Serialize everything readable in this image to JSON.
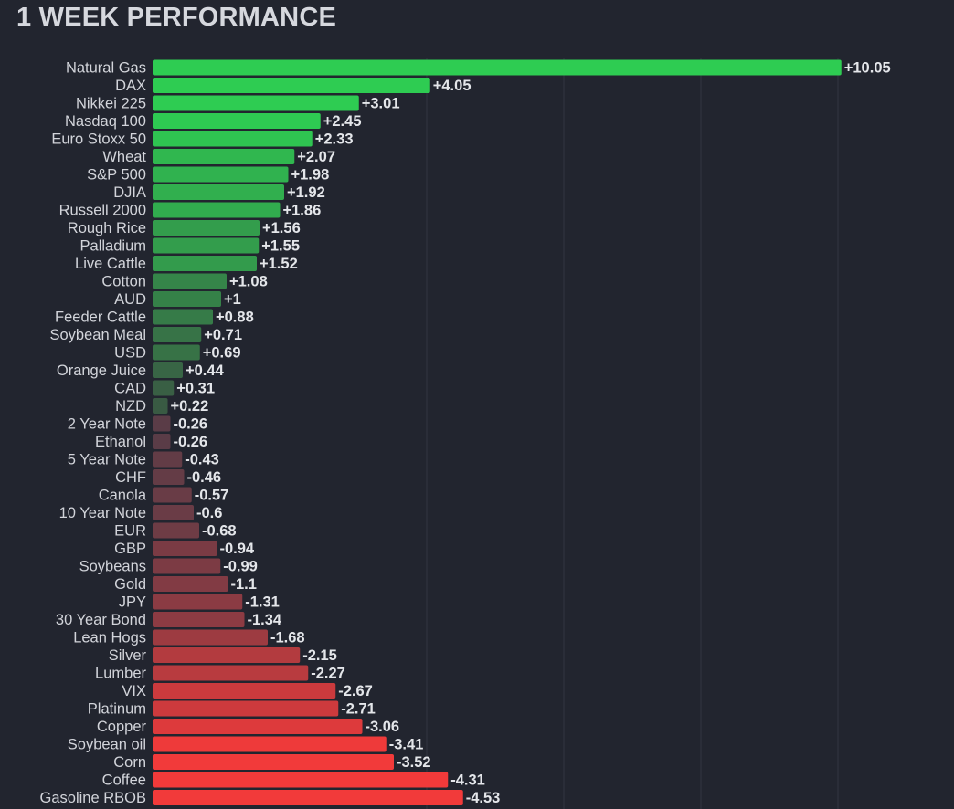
{
  "chart_data": {
    "type": "bar",
    "orientation": "horizontal",
    "title": "1 WEEK PERFORMANCE",
    "xlabel": "",
    "ylabel": "",
    "grid": true,
    "categories": [
      "Natural Gas",
      "DAX",
      "Nikkei 225",
      "Nasdaq 100",
      "Euro Stoxx 50",
      "Wheat",
      "S&P 500",
      "DJIA",
      "Russell 2000",
      "Rough Rice",
      "Palladium",
      "Live Cattle",
      "Cotton",
      "AUD",
      "Feeder Cattle",
      "Soybean Meal",
      "USD",
      "Orange Juice",
      "CAD",
      "NZD",
      "2 Year Note",
      "Ethanol",
      "5 Year Note",
      "CHF",
      "Canola",
      "10 Year Note",
      "EUR",
      "GBP",
      "Soybeans",
      "Gold",
      "JPY",
      "30 Year Bond",
      "Lean Hogs",
      "Silver",
      "Lumber",
      "VIX",
      "Platinum",
      "Copper",
      "Soybean oil",
      "Corn",
      "Coffee",
      "Gasoline RBOB"
    ],
    "values": [
      10.05,
      4.05,
      3.01,
      2.45,
      2.33,
      2.07,
      1.98,
      1.92,
      1.86,
      1.56,
      1.55,
      1.52,
      1.08,
      1,
      0.88,
      0.71,
      0.69,
      0.44,
      0.31,
      0.22,
      -0.26,
      -0.26,
      -0.43,
      -0.46,
      -0.57,
      -0.6,
      -0.68,
      -0.94,
      -0.99,
      -1.1,
      -1.31,
      -1.34,
      -1.68,
      -2.15,
      -2.27,
      -2.67,
      -2.71,
      -3.06,
      -3.41,
      -3.52,
      -4.31,
      -4.53
    ],
    "value_labels": [
      "+10.05",
      "+4.05",
      "+3.01",
      "+2.45",
      "+2.33",
      "+2.07",
      "+1.98",
      "+1.92",
      "+1.86",
      "+1.56",
      "+1.55",
      "+1.52",
      "+1.08",
      "+1",
      "+0.88",
      "+0.71",
      "+0.69",
      "+0.44",
      "+0.31",
      "+0.22",
      "-0.26",
      "-0.26",
      "-0.43",
      "-0.46",
      "-0.57",
      "-0.6",
      "-0.68",
      "-0.94",
      "-0.99",
      "-1.1",
      "-1.31",
      "-1.34",
      "-1.68",
      "-2.15",
      "-2.27",
      "-2.67",
      "-2.71",
      "-3.06",
      "-3.41",
      "-3.52",
      "-4.31",
      "-4.53"
    ],
    "colors": {
      "positive_strong": "#2ecc52",
      "positive_weak": "#3a4f42",
      "negative_weak": "#4e3c48",
      "negative_strong": "#f23a3a",
      "gridline": "#323541"
    }
  }
}
